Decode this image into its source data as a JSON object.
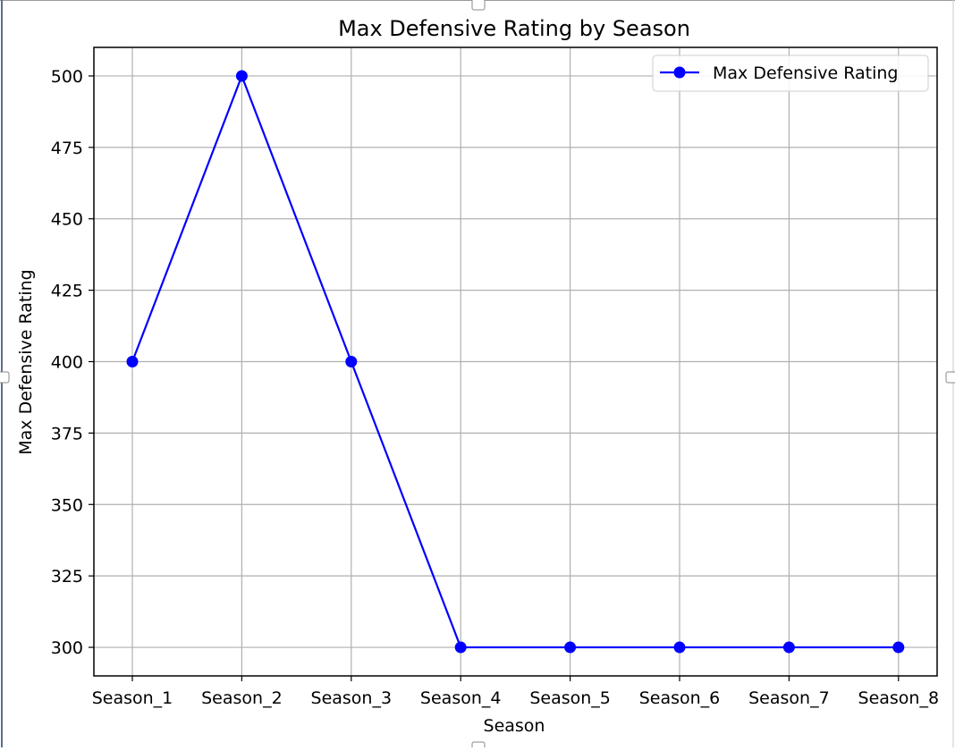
{
  "chart_data": {
    "type": "line",
    "title": "Max Defensive Rating by Season",
    "xlabel": "Season",
    "ylabel": "Max Defensive Rating",
    "categories": [
      "Season_1",
      "Season_2",
      "Season_3",
      "Season_4",
      "Season_5",
      "Season_6",
      "Season_7",
      "Season_8"
    ],
    "series": [
      {
        "name": "Max Defensive Rating",
        "values": [
          400,
          500,
          400,
          300,
          300,
          300,
          300,
          300
        ],
        "color": "#0000ff",
        "marker": "circle"
      }
    ],
    "yticks": [
      300,
      325,
      350,
      375,
      400,
      425,
      450,
      475,
      500
    ],
    "ylim": [
      290,
      510
    ],
    "grid": true,
    "legend_position": "top-right"
  }
}
